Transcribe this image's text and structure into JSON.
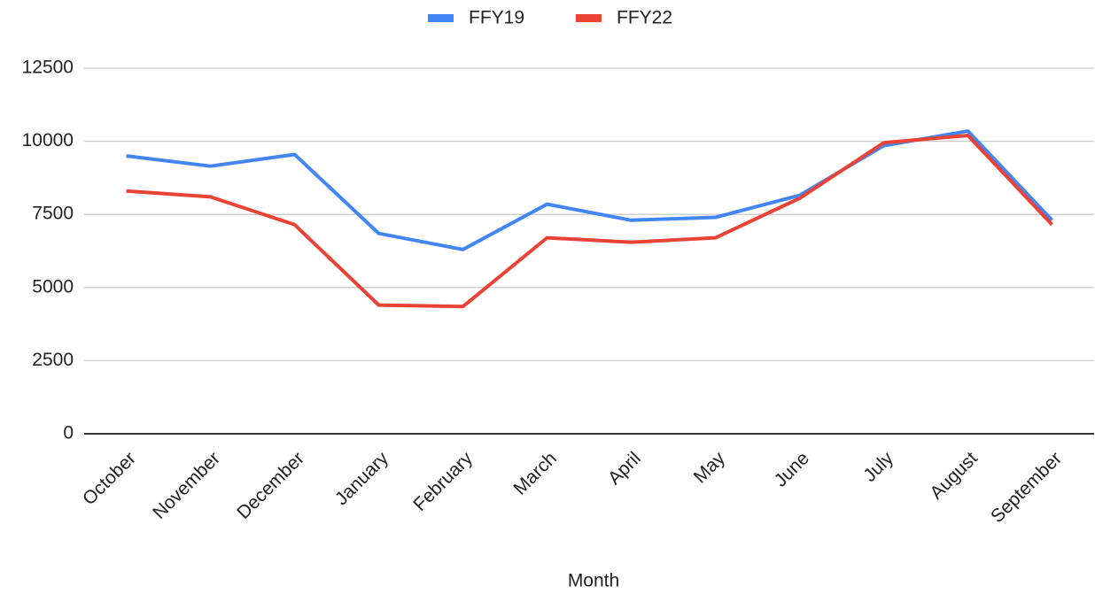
{
  "chart_data": {
    "type": "line",
    "x_label": "Month",
    "categories": [
      "October",
      "November",
      "December",
      "January",
      "February",
      "March",
      "April",
      "May",
      "June",
      "July",
      "August",
      "September"
    ],
    "series": [
      {
        "name": "FFY19",
        "color": "#4285f4",
        "values": [
          9500,
          9150,
          9550,
          6850,
          6300,
          7850,
          7300,
          7400,
          8150,
          9850,
          10350,
          7300
        ]
      },
      {
        "name": "FFY22",
        "color": "#ea4335",
        "values": [
          8300,
          8100,
          7150,
          4400,
          4350,
          6700,
          6550,
          6700,
          8050,
          9950,
          10200,
          7150
        ]
      }
    ],
    "ylim": [
      0,
      12500
    ],
    "yticks": [
      0,
      2500,
      5000,
      7500,
      10000,
      12500
    ],
    "grid": true,
    "legend": "top"
  }
}
